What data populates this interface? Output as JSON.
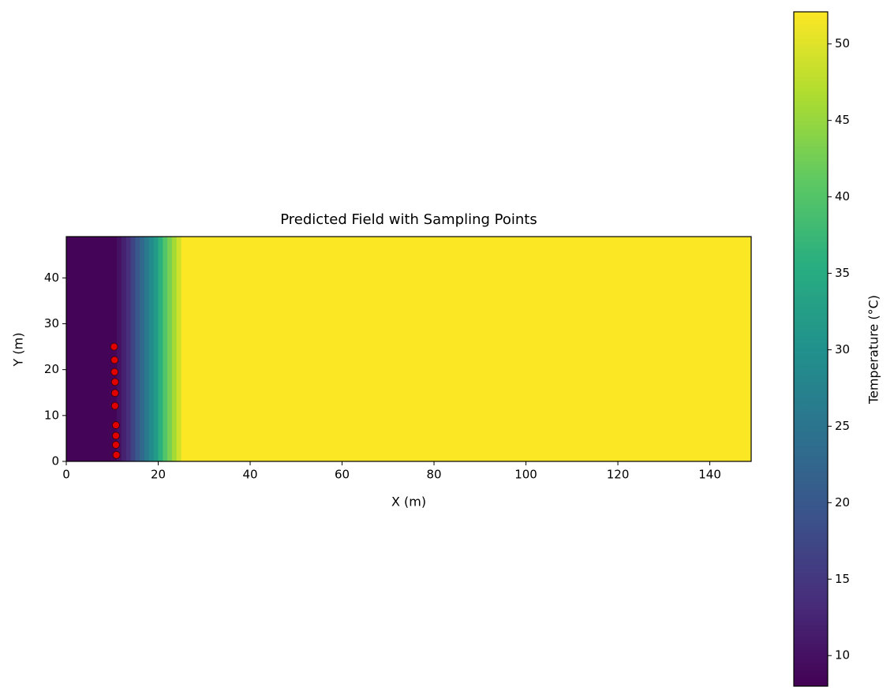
{
  "chart_data": {
    "type": "heatmap",
    "title": "Predicted Field with Sampling Points",
    "x_label": "X (m)",
    "y_label": "Y (m)",
    "x_edges": [
      0,
      11,
      12,
      13,
      14,
      15,
      16,
      17,
      18,
      19,
      20,
      21,
      22,
      23,
      24,
      25,
      149
    ],
    "y_edges": [
      0,
      49
    ],
    "values": [
      8.5,
      10,
      12,
      14,
      17,
      20,
      23,
      26,
      29,
      32,
      36,
      40,
      43,
      46,
      49,
      52
    ],
    "colormap": "viridis",
    "xlim": [
      0,
      149
    ],
    "ylim": [
      0,
      49
    ],
    "xticks": [
      0,
      20,
      40,
      60,
      80,
      100,
      120,
      140
    ],
    "yticks": [
      0,
      10,
      20,
      30,
      40
    ],
    "points": {
      "color": "#e00000",
      "edgecolor": "#3a0000",
      "x": [
        10.4,
        10.5,
        10.5,
        10.6,
        10.6,
        10.6,
        10.8,
        10.8,
        10.8,
        10.9
      ],
      "y": [
        25.0,
        22.1,
        19.5,
        17.3,
        14.9,
        12.1,
        7.9,
        5.6,
        3.6,
        1.4
      ]
    },
    "colorbar": {
      "label": "Temperature (°C)",
      "clim": [
        8,
        52.1
      ],
      "ticks": [
        10,
        15,
        20,
        25,
        30,
        35,
        40,
        45,
        50
      ]
    }
  }
}
